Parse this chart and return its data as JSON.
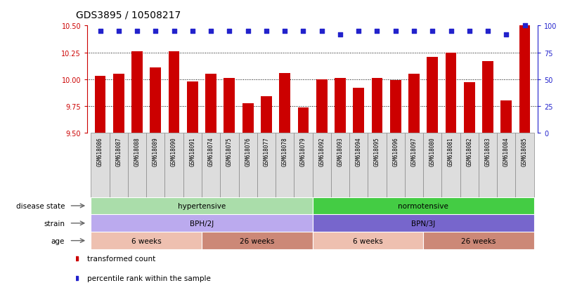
{
  "title": "GDS3895 / 10508217",
  "samples": [
    "GSM618086",
    "GSM618087",
    "GSM618088",
    "GSM618089",
    "GSM618090",
    "GSM618091",
    "GSM618074",
    "GSM618075",
    "GSM618076",
    "GSM618077",
    "GSM618078",
    "GSM618079",
    "GSM618092",
    "GSM618093",
    "GSM618094",
    "GSM618095",
    "GSM618096",
    "GSM618097",
    "GSM618080",
    "GSM618081",
    "GSM618082",
    "GSM618083",
    "GSM618084",
    "GSM618085"
  ],
  "bar_values": [
    10.03,
    10.05,
    10.26,
    10.11,
    10.26,
    9.98,
    10.05,
    10.01,
    9.78,
    9.84,
    10.06,
    9.74,
    10.0,
    10.01,
    9.92,
    10.01,
    9.99,
    10.05,
    10.21,
    10.25,
    9.97,
    10.17,
    9.8,
    10.5
  ],
  "percentile_values": [
    95,
    95,
    95,
    95,
    95,
    95,
    95,
    95,
    95,
    95,
    95,
    95,
    95,
    92,
    95,
    95,
    95,
    95,
    95,
    95,
    95,
    95,
    92,
    100
  ],
  "ylim_left": [
    9.5,
    10.5
  ],
  "ylim_right": [
    0,
    100
  ],
  "yticks_left": [
    9.5,
    9.75,
    10.0,
    10.25,
    10.5
  ],
  "yticks_right": [
    0,
    25,
    50,
    75,
    100
  ],
  "bar_color": "#cc0000",
  "dot_color": "#2222cc",
  "disease_state_groups": [
    {
      "label": "hypertensive",
      "start": 0,
      "end": 12,
      "color": "#aaddaa"
    },
    {
      "label": "normotensive",
      "start": 12,
      "end": 24,
      "color": "#44cc44"
    }
  ],
  "strain_groups": [
    {
      "label": "BPH/2J",
      "start": 0,
      "end": 12,
      "color": "#bbaaee"
    },
    {
      "label": "BPN/3J",
      "start": 12,
      "end": 24,
      "color": "#7766cc"
    }
  ],
  "age_groups": [
    {
      "label": "6 weeks",
      "start": 0,
      "end": 6,
      "color": "#eec0b0"
    },
    {
      "label": "26 weeks",
      "start": 6,
      "end": 12,
      "color": "#cc8877"
    },
    {
      "label": "6 weeks",
      "start": 12,
      "end": 18,
      "color": "#eec0b0"
    },
    {
      "label": "26 weeks",
      "start": 18,
      "end": 24,
      "color": "#cc8877"
    }
  ],
  "legend_items": [
    {
      "label": "transformed count",
      "color": "#cc0000"
    },
    {
      "label": "percentile rank within the sample",
      "color": "#2222cc"
    }
  ],
  "row_labels": [
    "disease state",
    "strain",
    "age"
  ],
  "title_fontsize": 10,
  "tick_fontsize": 7,
  "bar_width": 0.6
}
